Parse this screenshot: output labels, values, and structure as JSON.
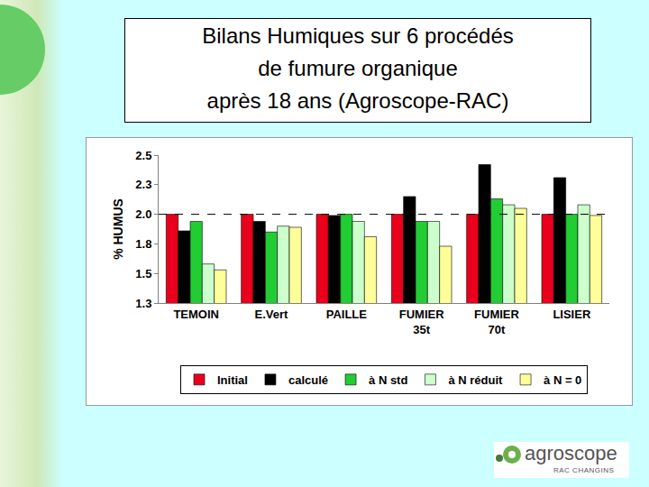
{
  "chart_data": {
    "type": "bar",
    "title": "Bilans Humiques sur 6 procédés\nde fumure organique\naprès 18 ans (Agroscope-RAC)",
    "y_label": "% HUMUS",
    "categories": [
      "TEMOIN",
      "E.Vert",
      "PAILLE",
      "FUMIER 35t",
      "FUMIER 70t",
      "LISIER"
    ],
    "series": [
      {
        "name": "Initial",
        "color": "#e8001c",
        "values": [
          2.0,
          2.0,
          2.0,
          2.0,
          2.0,
          2.0
        ]
      },
      {
        "name": "calculé",
        "color": "#000000",
        "values": [
          1.86,
          1.94,
          1.99,
          2.15,
          2.42,
          2.31
        ]
      },
      {
        "name": "à N std",
        "color": "#22cc33",
        "values": [
          1.94,
          1.85,
          2.0,
          1.94,
          2.13,
          2.0
        ]
      },
      {
        "name": "à N réduit",
        "color": "#ccffcc",
        "values": [
          1.58,
          1.9,
          1.94,
          1.94,
          2.08,
          2.08
        ]
      },
      {
        "name": "à N = 0",
        "color": "#ffff99",
        "values": [
          1.53,
          1.89,
          1.81,
          1.73,
          2.05,
          1.99
        ]
      }
    ],
    "ylim": [
      1.25,
      2.5
    ],
    "yticks": [
      {
        "value": 1.25,
        "label": "1.3"
      },
      1.5,
      {
        "value": 1.75,
        "label": "1.8"
      },
      {
        "value": 2,
        "label": "2.0"
      },
      {
        "value": 2.25,
        "label": "2.3"
      },
      2.5
    ],
    "reference_line": 2.0,
    "grid": false,
    "legend": "bottom"
  },
  "logo": {
    "name": "agroscope",
    "subtitle": "RAC CHANGINS"
  }
}
